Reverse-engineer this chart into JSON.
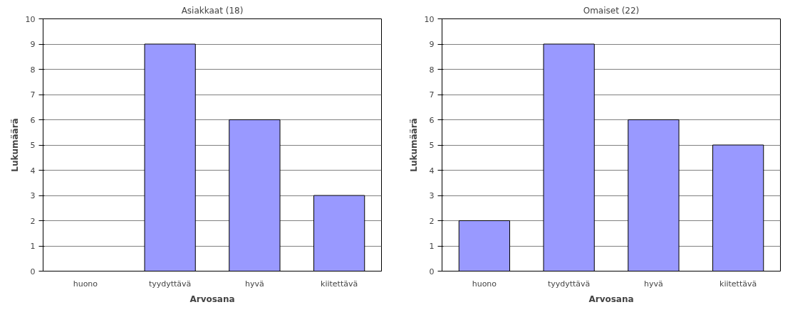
{
  "chart_data": [
    {
      "type": "bar",
      "title": "Asiakkaat (18)",
      "xlabel": "Arvosana",
      "ylabel": "Lukumäärä",
      "categories": [
        "huono",
        "tyydyttävä",
        "hyvä",
        "kiitettävä"
      ],
      "values": [
        0,
        9,
        6,
        3
      ],
      "color": "#9999ff",
      "ylim": [
        0,
        10
      ],
      "yticks": [
        0,
        1,
        2,
        3,
        4,
        5,
        6,
        7,
        8,
        9,
        10
      ],
      "grid": "y"
    },
    {
      "type": "bar",
      "title": "Omaiset (22)",
      "xlabel": "Arvosana",
      "ylabel": "Lukumäärä",
      "categories": [
        "huono",
        "tyydyttävä",
        "hyvä",
        "kiitettävä"
      ],
      "values": [
        2,
        9,
        6,
        5
      ],
      "color": "#9999ff",
      "ylim": [
        0,
        10
      ],
      "yticks": [
        0,
        1,
        2,
        3,
        4,
        5,
        6,
        7,
        8,
        9,
        10
      ],
      "grid": "y"
    }
  ]
}
